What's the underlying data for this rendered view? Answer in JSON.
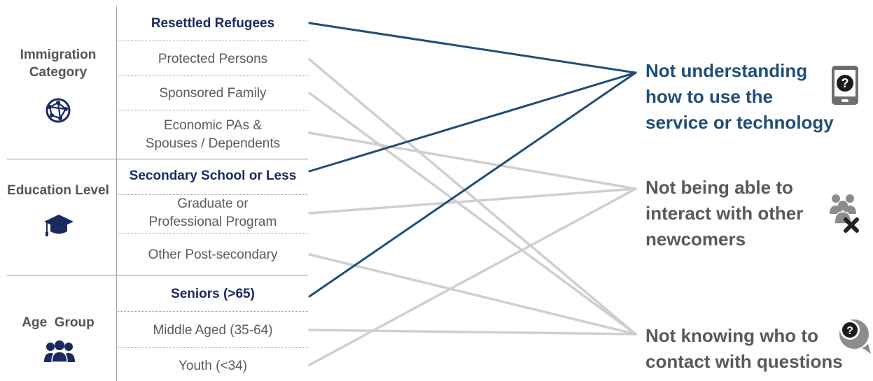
{
  "groups": [
    {
      "label": "Immigration\nCategory",
      "icon": "globe-network-icon"
    },
    {
      "label": "Education Level",
      "icon": "graduation-cap-icon"
    },
    {
      "label": "Age  Group",
      "icon": "people-group-icon"
    }
  ],
  "items": [
    {
      "label": "Resettled Refugees",
      "highlight": true
    },
    {
      "label": "Protected Persons",
      "highlight": false
    },
    {
      "label": "Sponsored Family",
      "highlight": false
    },
    {
      "label": "Economic PAs &\nSpouses / Dependents",
      "highlight": false
    },
    {
      "label": "Secondary School or Less",
      "highlight": true
    },
    {
      "label": "Graduate or\nProfessional Program",
      "highlight": false
    },
    {
      "label": "Other Post-secondary",
      "highlight": false
    },
    {
      "label": "Seniors (>65)",
      "highlight": true
    },
    {
      "label": "Middle Aged (35-64)",
      "highlight": false
    },
    {
      "label": "Youth (<34)",
      "highlight": false
    }
  ],
  "outcomes": [
    {
      "label": "Not understanding\nhow to use the\nservice or technology",
      "highlight": true,
      "icon": "tablet-question-icon"
    },
    {
      "label": "Not being able to\ninteract with other\nnewcomers",
      "highlight": false,
      "icon": "group-x-icon"
    },
    {
      "label": "Not knowing who to\ncontact with questions",
      "highlight": false,
      "icon": "speech-bubble-question-icon"
    }
  ],
  "links": [
    {
      "from": 0,
      "to": 0,
      "highlight": true
    },
    {
      "from": 1,
      "to": 2,
      "highlight": false
    },
    {
      "from": 2,
      "to": 2,
      "highlight": false
    },
    {
      "from": 3,
      "to": 1,
      "highlight": false
    },
    {
      "from": 4,
      "to": 0,
      "highlight": true
    },
    {
      "from": 5,
      "to": 1,
      "highlight": false
    },
    {
      "from": 6,
      "to": 2,
      "highlight": false
    },
    {
      "from": 7,
      "to": 0,
      "highlight": true
    },
    {
      "from": 8,
      "to": 2,
      "highlight": false
    },
    {
      "from": 9,
      "to": 1,
      "highlight": false
    }
  ],
  "colors": {
    "highlight_text": "#1b2a5e",
    "highlight_outcome": "#1f4e79",
    "highlight_link": "#1f4e79",
    "muted_link": "#cfcfcf",
    "muted_text": "#5b5b5b"
  }
}
